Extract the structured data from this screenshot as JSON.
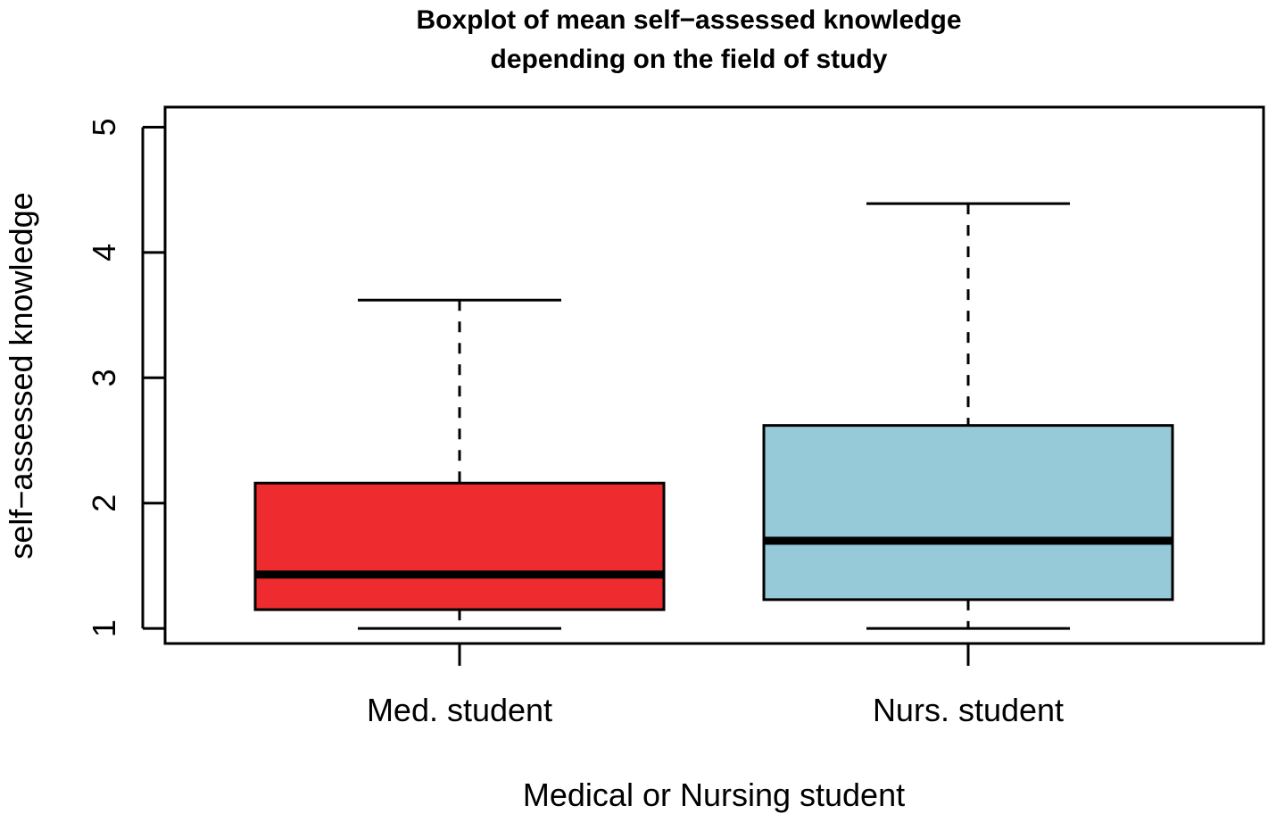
{
  "chart_data": {
    "type": "boxplot",
    "title_lines": [
      "Boxplot of mean self−assessed knowledge",
      "depending on the field of study"
    ],
    "xlabel": "Medical or Nursing student",
    "ylabel": "self−assessed knowledge",
    "categories": [
      "Med. student",
      "Nurs. student"
    ],
    "ylim": [
      0.88,
      5.16
    ],
    "yticks": [
      1,
      2,
      3,
      4,
      5
    ],
    "ytick_labels": [
      "1",
      "2",
      "3",
      "4",
      "5"
    ],
    "boxes": [
      {
        "category": "Med. student",
        "whisker_low": 1.0,
        "q1": 1.15,
        "median": 1.43,
        "q3": 2.16,
        "whisker_high": 3.62,
        "color": "#ee2b2e"
      },
      {
        "category": "Nurs. student",
        "whisker_low": 1.0,
        "q1": 1.23,
        "median": 1.7,
        "q3": 2.62,
        "whisker_high": 4.39,
        "color": "#96cad9"
      }
    ],
    "grid": false,
    "legend": "none"
  }
}
